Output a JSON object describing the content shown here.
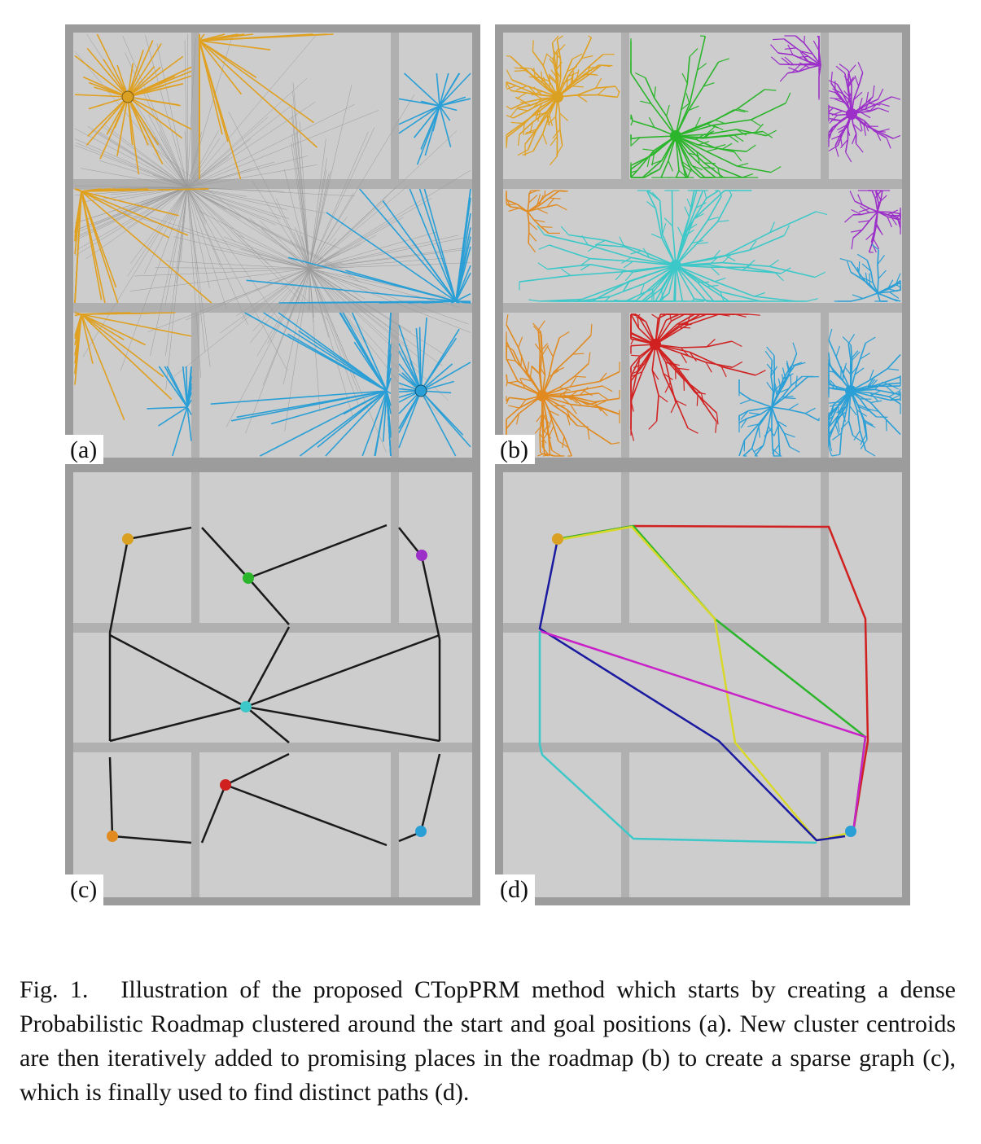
{
  "figure": {
    "panels": [
      {
        "id": "a",
        "label": "(a)"
      },
      {
        "id": "b",
        "label": "(b)"
      },
      {
        "id": "c",
        "label": "(c)"
      },
      {
        "id": "d",
        "label": "(d)"
      }
    ],
    "caption_label": "Fig. 1.",
    "caption_text": "Illustration of the proposed CTopPRM method which starts by creating a dense Probabilistic Roadmap clustered around the start and goal positions (a). New cluster centroids are then iteratively added to promising places in the roadmap (b) to create a sparse graph (c), which is finally used to find distinct paths (d)."
  },
  "colors": {
    "background": "#9a9a9a",
    "wall": "#b4b4b4",
    "floor": "#c9c9c9",
    "orange": "#e0a020",
    "blue": "#2a9fd6",
    "green": "#2bb52b",
    "purple": "#9b2fc8",
    "cyan": "#3cc8c8",
    "red": "#d02020",
    "dark_orange": "#e08a20",
    "path_blue": "#1a1aa0",
    "path_yellow": "#d8d82a",
    "path_magenta": "#c822c8",
    "path_red": "#d02020",
    "path_green": "#2bb52b",
    "path_cyan": "#3cc8c8",
    "edge": "#1a1a1a"
  }
}
